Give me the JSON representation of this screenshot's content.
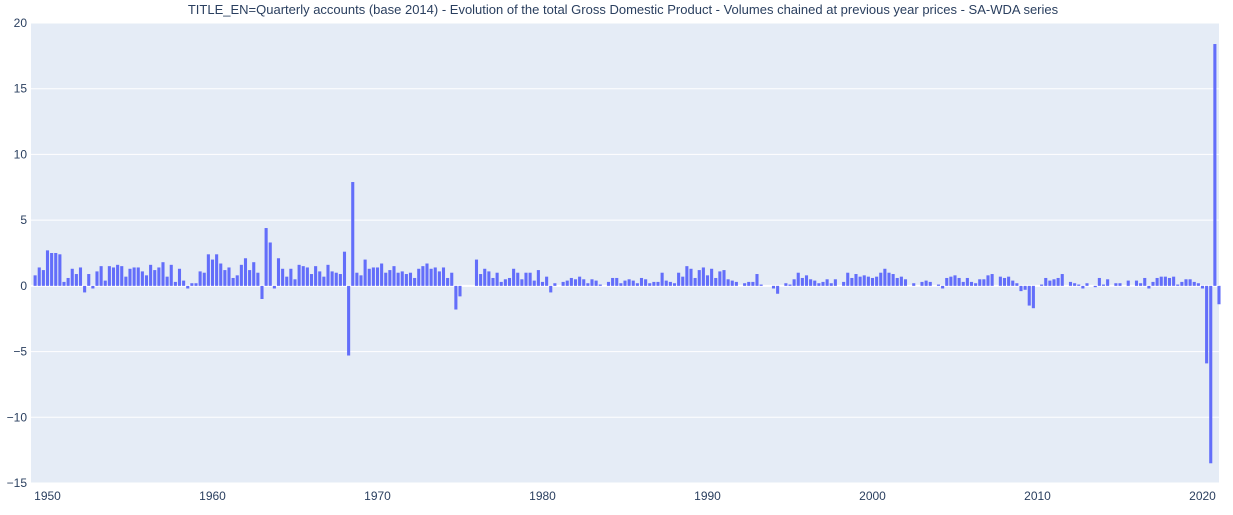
{
  "chart_data": {
    "type": "bar",
    "title": "TITLE_EN=Quarterly accounts (base 2014) - Evolution of the total Gross Domestic Product - Volumes chained at previous year prices - SA-WDA series",
    "xlabel": "",
    "ylabel": "",
    "xlim": [
      1949,
      2021
    ],
    "ylim": [
      -15,
      20
    ],
    "x_ticks": [
      1950,
      1960,
      1970,
      1980,
      1990,
      2000,
      2010,
      2020
    ],
    "y_ticks": [
      -15,
      -10,
      -5,
      0,
      5,
      10,
      15,
      20
    ],
    "grid": true,
    "bar_color": "#636efa",
    "plot_background": "#e5ecf6",
    "series": [
      {
        "x_start": 1949.25,
        "step": 0.25,
        "values": [
          0.8,
          1.4,
          1.2,
          2.7,
          2.5,
          2.5,
          2.4,
          0.3,
          0.6,
          1.3,
          0.9,
          1.4,
          -0.5,
          0.9,
          -0.2,
          1.1,
          1.5,
          0.4,
          1.5,
          1.4,
          1.6,
          1.5,
          0.7,
          1.3,
          1.4,
          1.4,
          1.1,
          0.8,
          1.6,
          1.2,
          1.4,
          1.8,
          0.7,
          1.6,
          0.3,
          1.3,
          0.4,
          -0.2,
          0.2,
          0.2,
          1.1,
          1.0,
          2.4,
          2.0,
          2.4,
          1.7,
          1.2,
          1.4,
          0.6,
          0.8,
          1.6,
          2.1,
          1.2,
          1.8,
          1.0,
          -1.0,
          4.4,
          3.3,
          -0.2,
          2.1,
          1.3,
          0.7,
          1.3,
          0.5,
          1.6,
          1.5,
          1.4,
          0.9,
          1.5,
          1.1,
          0.7,
          1.6,
          1.1,
          1.0,
          0.9,
          2.6,
          -5.3,
          7.9,
          1.0,
          0.8,
          2.0,
          1.3,
          1.4,
          1.4,
          1.7,
          1.0,
          1.2,
          1.5,
          1.0,
          1.1,
          0.9,
          1.0,
          0.6,
          1.3,
          1.5,
          1.7,
          1.3,
          1.4,
          1.1,
          1.4,
          0.6,
          1.0,
          -1.8,
          -0.8,
          0.0,
          0.0,
          0.0,
          2.0,
          0.9,
          1.3,
          1.1,
          0.6,
          1.0,
          0.3,
          0.5,
          0.6,
          1.3,
          1.0,
          0.5,
          1.0,
          1.0,
          0.4,
          1.2,
          0.3,
          0.7,
          -0.5,
          0.2,
          0.0,
          0.3,
          0.4,
          0.6,
          0.5,
          0.7,
          0.5,
          0.2,
          0.5,
          0.4,
          0.1,
          0.0,
          0.3,
          0.6,
          0.6,
          0.2,
          0.4,
          0.5,
          0.4,
          0.2,
          0.6,
          0.5,
          0.2,
          0.3,
          0.3,
          1.0,
          0.4,
          0.3,
          0.2,
          1.0,
          0.7,
          1.5,
          1.3,
          0.6,
          1.2,
          1.4,
          0.8,
          1.3,
          0.6,
          1.1,
          1.2,
          0.5,
          0.4,
          0.3,
          0.0,
          0.2,
          0.3,
          0.3,
          0.9,
          0.1,
          0.0,
          0.0,
          -0.2,
          -0.6,
          0.0,
          0.2,
          0.1,
          0.5,
          1.0,
          0.6,
          0.8,
          0.5,
          0.4,
          0.2,
          0.3,
          0.5,
          0.2,
          0.5,
          0.0,
          0.3,
          1.0,
          0.6,
          0.9,
          0.7,
          0.8,
          0.7,
          0.6,
          0.7,
          1.0,
          1.3,
          1.0,
          0.9,
          0.6,
          0.7,
          0.5,
          0.0,
          0.2,
          0.0,
          0.3,
          0.4,
          0.3,
          0.0,
          0.1,
          -0.2,
          0.6,
          0.7,
          0.8,
          0.6,
          0.3,
          0.6,
          0.3,
          0.2,
          0.5,
          0.5,
          0.8,
          0.9,
          0.0,
          0.7,
          0.6,
          0.7,
          0.4,
          0.2,
          -0.4,
          -0.3,
          -1.5,
          -1.7,
          0.0,
          0.1,
          0.6,
          0.4,
          0.5,
          0.6,
          0.9,
          0.0,
          0.3,
          0.2,
          0.1,
          -0.2,
          0.2,
          0.0,
          -0.1,
          0.6,
          0.1,
          0.5,
          0.0,
          0.2,
          0.2,
          0.0,
          0.4,
          0.0,
          0.4,
          0.2,
          0.6,
          -0.2,
          0.3,
          0.6,
          0.7,
          0.7,
          0.6,
          0.7,
          0.1,
          0.3,
          0.5,
          0.5,
          0.3,
          0.2,
          -0.2,
          -5.9,
          -13.5,
          18.4,
          -1.4
        ]
      }
    ]
  }
}
